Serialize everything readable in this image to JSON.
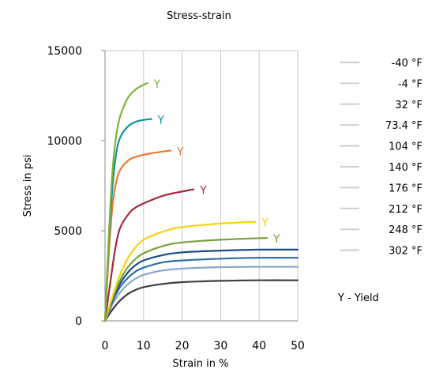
{
  "chart_data": {
    "type": "line",
    "title": "Stress-strain",
    "xlabel": "Strain in %",
    "ylabel": "Stress in psi",
    "xlim": [
      0,
      50
    ],
    "ylim": [
      0,
      15000
    ],
    "xticks": [
      "0",
      "10",
      "20",
      "30",
      "40",
      "50"
    ],
    "yticks": [
      "0",
      "5000",
      "10000",
      "15000"
    ],
    "grid": "vertical",
    "legend_position": "right",
    "yield_symbol": "Y",
    "note": "Y - Yield",
    "series": [
      {
        "name": "-40 °F",
        "color": "#7ab534",
        "x": [
          0,
          1,
          2,
          3,
          4,
          6,
          8,
          10,
          11
        ],
        "y": [
          0,
          4800,
          8500,
          10400,
          11400,
          12400,
          12850,
          13100,
          13200
        ],
        "yield_point": [
          11,
          13200
        ]
      },
      {
        "name": "-4 °F",
        "color": "#12929a",
        "x": [
          0,
          1,
          2,
          3,
          4,
          6,
          8,
          10,
          12
        ],
        "y": [
          0,
          4400,
          7600,
          9400,
          10200,
          10800,
          11050,
          11150,
          11200
        ],
        "yield_point": [
          12,
          11200
        ]
      },
      {
        "name": "32 °F",
        "color": "#e77b32",
        "x": [
          0,
          1,
          2,
          3,
          4,
          6,
          8,
          12,
          17
        ],
        "y": [
          0,
          3800,
          6500,
          7800,
          8400,
          8900,
          9100,
          9300,
          9450
        ],
        "yield_point": [
          17,
          9450
        ]
      },
      {
        "name": "73.4 °F",
        "color": "#a3283f",
        "x": [
          0,
          2,
          3,
          4,
          6,
          8,
          12,
          16,
          23
        ],
        "y": [
          0,
          3100,
          4400,
          5200,
          5900,
          6300,
          6700,
          7000,
          7300
        ],
        "yield_point": [
          23,
          7300
        ]
      },
      {
        "name": "104 °F",
        "color": "#f5d212",
        "x": [
          0,
          2,
          4,
          6,
          8,
          10,
          15,
          20,
          30,
          39
        ],
        "y": [
          0,
          1400,
          2600,
          3500,
          4100,
          4500,
          4950,
          5200,
          5400,
          5500
        ],
        "yield_point": [
          39,
          5500
        ]
      },
      {
        "name": "140 °F",
        "color": "#79a13a",
        "x": [
          0,
          2,
          4,
          6,
          8,
          10,
          15,
          20,
          30,
          42
        ],
        "y": [
          0,
          1300,
          2300,
          3000,
          3450,
          3750,
          4150,
          4350,
          4500,
          4600
        ],
        "yield_point": [
          42,
          4600
        ]
      },
      {
        "name": "176 °F",
        "color": "#1a4f87",
        "x": [
          0,
          2,
          4,
          6,
          8,
          10,
          15,
          20,
          30,
          40,
          50
        ],
        "y": [
          0,
          1200,
          2100,
          2700,
          3100,
          3350,
          3650,
          3800,
          3900,
          3950,
          3950
        ]
      },
      {
        "name": "212 °F",
        "color": "#2d6fa8",
        "x": [
          0,
          2,
          4,
          6,
          8,
          10,
          15,
          20,
          30,
          40,
          50
        ],
        "y": [
          0,
          1100,
          1900,
          2400,
          2750,
          2950,
          3250,
          3350,
          3450,
          3500,
          3500
        ]
      },
      {
        "name": "248 °F",
        "color": "#8aa8c9",
        "x": [
          0,
          2,
          4,
          6,
          8,
          10,
          15,
          20,
          30,
          40,
          50
        ],
        "y": [
          0,
          950,
          1600,
          2050,
          2350,
          2550,
          2800,
          2900,
          2980,
          3000,
          3000
        ]
      },
      {
        "name": "302 °F",
        "color": "#3f3f3f",
        "x": [
          0,
          2,
          4,
          6,
          8,
          10,
          15,
          20,
          30,
          40,
          50
        ],
        "y": [
          0,
          650,
          1150,
          1500,
          1720,
          1870,
          2050,
          2150,
          2220,
          2250,
          2250
        ]
      }
    ]
  }
}
